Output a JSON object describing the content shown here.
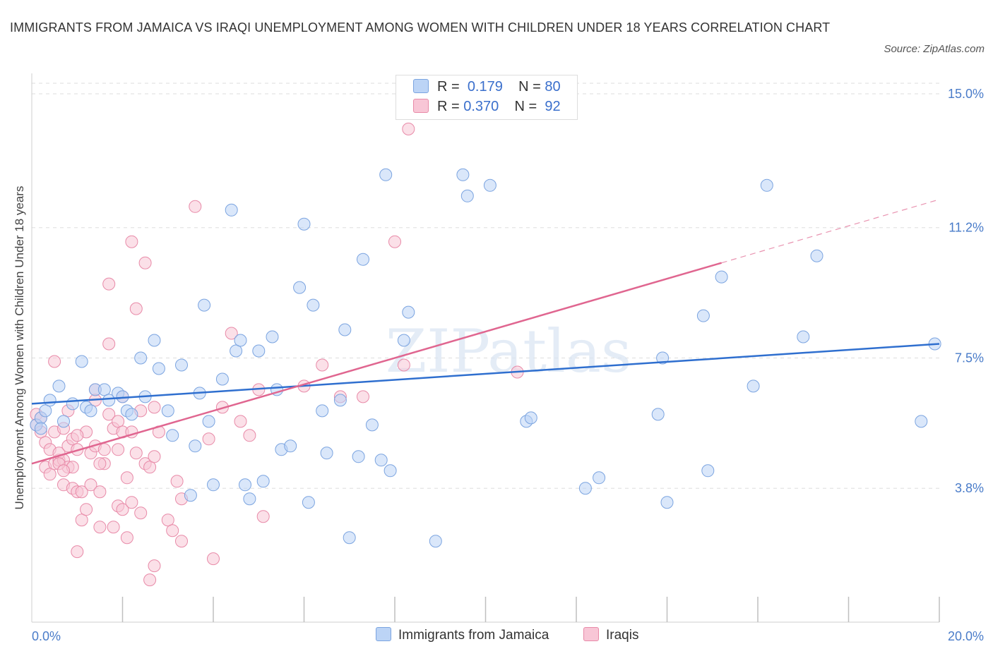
{
  "title": "IMMIGRANTS FROM JAMAICA VS IRAQI UNEMPLOYMENT AMONG WOMEN WITH CHILDREN UNDER 18 YEARS CORRELATION CHART",
  "source": "Source: ZipAtlas.com",
  "watermark": "ZIPatlas",
  "colors": {
    "jamaica_fill": "#bcd4f6",
    "jamaica_stroke": "#7ba4e0",
    "jamaica_line": "#2f6fcf",
    "iraq_fill": "#f8c6d6",
    "iraq_stroke": "#e88aa8",
    "iraq_line": "#e06690",
    "tick_text": "#4a7cc9",
    "grid": "#dddddd"
  },
  "legend": {
    "rows": [
      {
        "r_label": "R =",
        "r_value": "0.179",
        "n_label": "N =",
        "n_value": "80"
      },
      {
        "r_label": "R =",
        "r_value": "0.370",
        "n_label": "N =",
        "n_value": "92"
      }
    ]
  },
  "chart_data": {
    "type": "scatter",
    "title": "IMMIGRANTS FROM JAMAICA VS IRAQI UNEMPLOYMENT AMONG WOMEN WITH CHILDREN UNDER 18 YEARS CORRELATION CHART",
    "xlabel": "",
    "ylabel": "Unemployment Among Women with Children Under 18 years",
    "xlim": [
      0,
      20
    ],
    "ylim": [
      0,
      15.3
    ],
    "x_tick_labels": [
      "0.0%",
      "20.0%"
    ],
    "y_ticks": [
      3.8,
      7.5,
      11.2,
      15.0
    ],
    "y_tick_labels": [
      "3.8%",
      "7.5%",
      "11.2%",
      "15.0%"
    ],
    "grid": true,
    "legend_position": "top-center",
    "series": [
      {
        "name": "Immigrants from Jamaica",
        "trend": {
          "x": [
            0,
            20
          ],
          "y": [
            6.2,
            7.9
          ]
        },
        "points": [
          [
            0.1,
            5.6
          ],
          [
            0.2,
            5.8
          ],
          [
            0.2,
            5.5
          ],
          [
            0.3,
            6.0
          ],
          [
            0.4,
            6.3
          ],
          [
            0.6,
            6.7
          ],
          [
            0.7,
            5.7
          ],
          [
            0.9,
            6.2
          ],
          [
            1.1,
            7.4
          ],
          [
            1.2,
            6.1
          ],
          [
            1.3,
            6.0
          ],
          [
            1.4,
            6.6
          ],
          [
            1.6,
            6.6
          ],
          [
            1.7,
            6.3
          ],
          [
            1.9,
            6.5
          ],
          [
            2.0,
            6.4
          ],
          [
            2.1,
            6.0
          ],
          [
            2.2,
            5.9
          ],
          [
            2.4,
            7.5
          ],
          [
            2.5,
            6.4
          ],
          [
            2.7,
            8.0
          ],
          [
            2.8,
            7.2
          ],
          [
            3.0,
            6.0
          ],
          [
            3.1,
            5.3
          ],
          [
            3.3,
            7.3
          ],
          [
            3.5,
            3.6
          ],
          [
            3.6,
            5.0
          ],
          [
            3.7,
            6.5
          ],
          [
            3.8,
            9.0
          ],
          [
            3.9,
            5.7
          ],
          [
            4.0,
            3.9
          ],
          [
            4.2,
            6.9
          ],
          [
            4.4,
            11.7
          ],
          [
            4.5,
            7.7
          ],
          [
            4.6,
            8.0
          ],
          [
            4.7,
            3.9
          ],
          [
            4.8,
            3.5
          ],
          [
            5.0,
            7.7
          ],
          [
            5.1,
            4.0
          ],
          [
            5.3,
            8.1
          ],
          [
            5.4,
            6.6
          ],
          [
            5.5,
            4.9
          ],
          [
            5.7,
            5.0
          ],
          [
            5.9,
            9.5
          ],
          [
            6.0,
            11.3
          ],
          [
            6.1,
            3.4
          ],
          [
            6.2,
            9.0
          ],
          [
            6.4,
            6.0
          ],
          [
            6.5,
            4.8
          ],
          [
            6.8,
            6.3
          ],
          [
            6.9,
            8.3
          ],
          [
            7.0,
            2.4
          ],
          [
            7.2,
            4.7
          ],
          [
            7.3,
            10.3
          ],
          [
            7.5,
            5.6
          ],
          [
            7.7,
            4.6
          ],
          [
            7.8,
            12.7
          ],
          [
            7.9,
            4.3
          ],
          [
            8.2,
            8.0
          ],
          [
            8.3,
            8.8
          ],
          [
            8.9,
            2.3
          ],
          [
            9.5,
            12.7
          ],
          [
            9.6,
            12.1
          ],
          [
            10.1,
            12.4
          ],
          [
            10.9,
            5.7
          ],
          [
            11.0,
            5.8
          ],
          [
            12.2,
            3.8
          ],
          [
            12.5,
            4.1
          ],
          [
            13.8,
            5.9
          ],
          [
            13.9,
            7.5
          ],
          [
            14.0,
            3.4
          ],
          [
            14.8,
            8.7
          ],
          [
            14.9,
            4.3
          ],
          [
            15.2,
            9.8
          ],
          [
            15.9,
            6.7
          ],
          [
            16.2,
            12.4
          ],
          [
            17.0,
            8.1
          ],
          [
            17.3,
            10.4
          ],
          [
            19.6,
            5.7
          ],
          [
            19.9,
            7.9
          ]
        ]
      },
      {
        "name": "Iraqis",
        "trend": {
          "x": [
            0,
            15.2
          ],
          "y": [
            4.5,
            10.2
          ]
        },
        "trend_dashed": {
          "x": [
            15.2,
            20
          ],
          "y": [
            10.2,
            12.0
          ]
        },
        "points": [
          [
            0.1,
            5.6
          ],
          [
            0.1,
            5.9
          ],
          [
            0.2,
            5.4
          ],
          [
            0.2,
            5.8
          ],
          [
            0.3,
            4.4
          ],
          [
            0.3,
            5.1
          ],
          [
            0.4,
            4.2
          ],
          [
            0.4,
            4.9
          ],
          [
            0.5,
            7.4
          ],
          [
            0.5,
            5.4
          ],
          [
            0.5,
            4.5
          ],
          [
            0.6,
            4.6
          ],
          [
            0.6,
            4.8
          ],
          [
            0.7,
            3.9
          ],
          [
            0.7,
            4.6
          ],
          [
            0.7,
            5.5
          ],
          [
            0.8,
            4.4
          ],
          [
            0.8,
            5.0
          ],
          [
            0.9,
            5.2
          ],
          [
            0.9,
            3.8
          ],
          [
            1.0,
            3.7
          ],
          [
            1.0,
            4.9
          ],
          [
            1.0,
            2.0
          ],
          [
            1.1,
            3.7
          ],
          [
            1.1,
            2.9
          ],
          [
            1.2,
            5.4
          ],
          [
            1.2,
            3.2
          ],
          [
            1.3,
            3.9
          ],
          [
            1.3,
            4.8
          ],
          [
            1.4,
            6.6
          ],
          [
            1.4,
            5.0
          ],
          [
            1.4,
            6.3
          ],
          [
            1.5,
            2.7
          ],
          [
            1.5,
            3.7
          ],
          [
            1.6,
            4.9
          ],
          [
            1.6,
            4.5
          ],
          [
            1.7,
            5.9
          ],
          [
            1.7,
            7.9
          ],
          [
            1.7,
            9.6
          ],
          [
            1.8,
            5.5
          ],
          [
            1.8,
            2.7
          ],
          [
            1.9,
            5.7
          ],
          [
            1.9,
            3.3
          ],
          [
            2.0,
            3.2
          ],
          [
            2.0,
            5.4
          ],
          [
            2.1,
            2.4
          ],
          [
            2.1,
            4.1
          ],
          [
            2.2,
            3.4
          ],
          [
            2.2,
            5.4
          ],
          [
            2.2,
            10.8
          ],
          [
            2.3,
            8.9
          ],
          [
            2.3,
            4.8
          ],
          [
            2.4,
            3.1
          ],
          [
            2.4,
            6.0
          ],
          [
            2.5,
            4.5
          ],
          [
            2.5,
            10.2
          ],
          [
            2.6,
            4.4
          ],
          [
            2.6,
            1.2
          ],
          [
            2.7,
            6.1
          ],
          [
            2.7,
            1.6
          ],
          [
            2.7,
            4.7
          ],
          [
            2.8,
            5.4
          ],
          [
            3.0,
            2.9
          ],
          [
            3.1,
            2.6
          ],
          [
            3.2,
            4.0
          ],
          [
            3.3,
            2.3
          ],
          [
            3.3,
            3.5
          ],
          [
            3.6,
            11.8
          ],
          [
            3.9,
            5.2
          ],
          [
            4.0,
            1.8
          ],
          [
            4.2,
            6.1
          ],
          [
            4.4,
            8.2
          ],
          [
            4.6,
            5.7
          ],
          [
            4.8,
            5.3
          ],
          [
            5.0,
            6.6
          ],
          [
            5.1,
            3.0
          ],
          [
            6.0,
            6.7
          ],
          [
            6.4,
            7.3
          ],
          [
            6.8,
            6.4
          ],
          [
            7.3,
            6.4
          ],
          [
            8.0,
            10.8
          ],
          [
            8.2,
            7.3
          ],
          [
            8.3,
            14.0
          ],
          [
            10.7,
            7.1
          ],
          [
            0.6,
            4.5
          ],
          [
            1.5,
            4.5
          ],
          [
            0.9,
            4.4
          ],
          [
            2.0,
            6.4
          ],
          [
            1.9,
            4.9
          ],
          [
            0.7,
            4.3
          ],
          [
            1.0,
            5.3
          ],
          [
            0.8,
            6.0
          ]
        ]
      }
    ]
  },
  "bottom_legend": [
    {
      "label": "Immigrants from Jamaica"
    },
    {
      "label": "Iraqis"
    }
  ]
}
